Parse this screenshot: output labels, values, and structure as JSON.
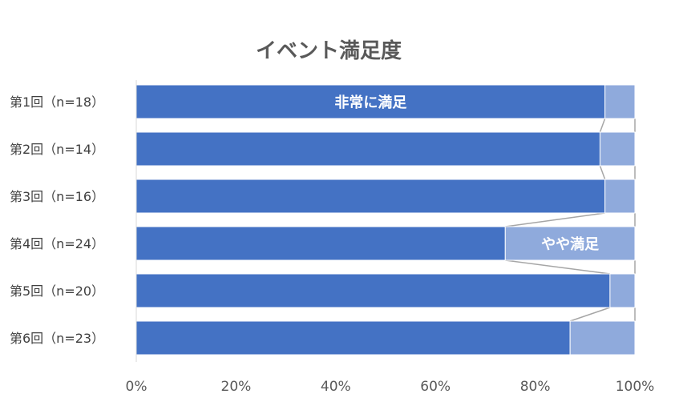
{
  "chart_data": {
    "type": "bar",
    "orientation": "horizontal",
    "stacked": true,
    "percent_stacked": true,
    "title": "イベント満足度",
    "categories": [
      "第1回（n=18）",
      "第2回（n=14）",
      "第3回（n=16）",
      "第4回（n=24）",
      "第5回（n=20）",
      "第6回（n=23）"
    ],
    "series": [
      {
        "name": "非常に満足",
        "values": [
          94,
          93,
          94,
          74,
          95,
          87
        ],
        "color": "#4472c4"
      },
      {
        "name": "やや満足",
        "values": [
          6,
          7,
          6,
          26,
          5,
          13
        ],
        "color": "#8faadc"
      }
    ],
    "series_labels_category_index": [
      0,
      3
    ],
    "xlim": [
      0,
      100
    ],
    "x_ticks": [
      "0%",
      "20%",
      "40%",
      "60%",
      "80%",
      "100%"
    ],
    "series_lines": true,
    "legend": "none",
    "grid": false
  }
}
